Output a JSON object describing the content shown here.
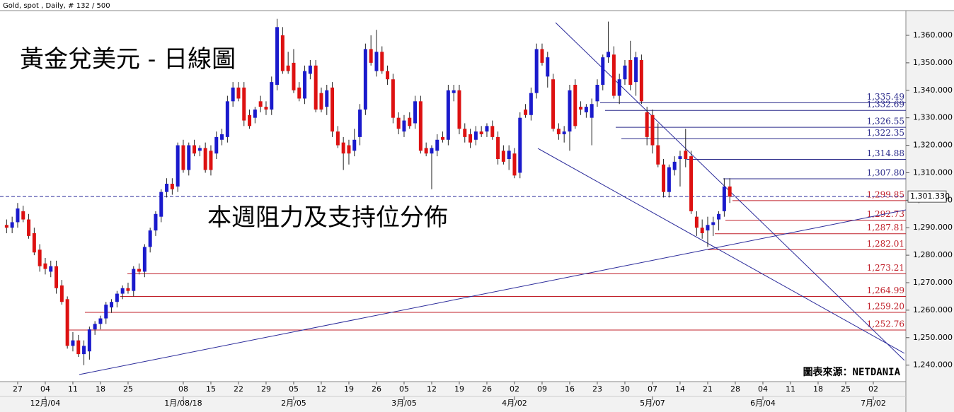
{
  "chart_data": {
    "type": "candlestick",
    "header": "Gold, spot , Daily, # 132 / 500",
    "title": "黃金兌美元 - 日線圖",
    "annotation": "本週阻力及支持位分佈",
    "source": "圖表來源：NETDANIA",
    "up_color": "#1a1acc",
    "down_color": "#dd1111",
    "xlim": [
      -3.2,
      160.9
    ],
    "ylim": [
      1234,
      1369
    ],
    "yticks": [
      {
        "value": 1240,
        "label": "1,240.000"
      },
      {
        "value": 1250,
        "label": "1,250.000"
      },
      {
        "value": 1260,
        "label": "1,260.000"
      },
      {
        "value": 1270,
        "label": "1,270.000"
      },
      {
        "value": 1280,
        "label": "1,280.000"
      },
      {
        "value": 1290,
        "label": "1,290.000"
      },
      {
        "value": 1300,
        "label": "1,300.000"
      },
      {
        "value": 1310,
        "label": "1,310.000"
      },
      {
        "value": 1320,
        "label": "1,320.000"
      },
      {
        "value": 1330,
        "label": "1,330.000"
      },
      {
        "value": 1340,
        "label": "1,340.000"
      },
      {
        "value": 1350,
        "label": "1,350.000"
      },
      {
        "value": 1360,
        "label": "1,360.000"
      }
    ],
    "xticks": [
      {
        "value": 0,
        "label": "27"
      },
      {
        "value": 5,
        "label": "04"
      },
      {
        "value": 10,
        "label": "11"
      },
      {
        "value": 15,
        "label": "18"
      },
      {
        "value": 20,
        "label": "25"
      },
      {
        "value": 30,
        "label": "08"
      },
      {
        "value": 35,
        "label": "15"
      },
      {
        "value": 40,
        "label": "22"
      },
      {
        "value": 45,
        "label": "29"
      },
      {
        "value": 50,
        "label": "05"
      },
      {
        "value": 55,
        "label": "12"
      },
      {
        "value": 60,
        "label": "19"
      },
      {
        "value": 65,
        "label": "26"
      },
      {
        "value": 70,
        "label": "05"
      },
      {
        "value": 75,
        "label": "12"
      },
      {
        "value": 80,
        "label": "19"
      },
      {
        "value": 85,
        "label": "26"
      },
      {
        "value": 90,
        "label": "02"
      },
      {
        "value": 95,
        "label": "09"
      },
      {
        "value": 100,
        "label": "16"
      },
      {
        "value": 105,
        "label": "23"
      },
      {
        "value": 110,
        "label": "30"
      },
      {
        "value": 115,
        "label": "07"
      },
      {
        "value": 120,
        "label": "14"
      },
      {
        "value": 125,
        "label": "21"
      },
      {
        "value": 130,
        "label": "28"
      },
      {
        "value": 135,
        "label": "04"
      },
      {
        "value": 140,
        "label": "11"
      },
      {
        "value": 145,
        "label": "18"
      },
      {
        "value": 150,
        "label": "25"
      },
      {
        "value": 155,
        "label": "02"
      }
    ],
    "month_ticks": [
      {
        "value": 5,
        "label": "12月/04"
      },
      {
        "value": 30,
        "label": "1月/08/18"
      },
      {
        "value": 50,
        "label": "2月/05"
      },
      {
        "value": 70,
        "label": "3月/05"
      },
      {
        "value": 90,
        "label": "4月/02"
      },
      {
        "value": 115,
        "label": "5月/07"
      },
      {
        "value": 135,
        "label": "6月/04"
      },
      {
        "value": 155,
        "label": "7月/02"
      }
    ],
    "last": {
      "value": 1301.33,
      "label": "1,301.330"
    },
    "levels": [
      {
        "value": 1335.49,
        "label": "1,335.49",
        "color": "#2a2a8a"
      },
      {
        "value": 1332.69,
        "label": "1,332.69",
        "color": "#2a2a8a"
      },
      {
        "value": 1326.55,
        "label": "1,326.55",
        "color": "#2a2a8a"
      },
      {
        "value": 1322.35,
        "label": "1,322.35",
        "color": "#2a2a8a"
      },
      {
        "value": 1314.88,
        "label": "1,314.88",
        "color": "#2a2a8a"
      },
      {
        "value": 1307.8,
        "label": "1,307.80",
        "color": "#2a2a8a"
      },
      {
        "value": 1299.85,
        "label": "1,299.85",
        "color": "#c0202a"
      },
      {
        "value": 1292.73,
        "label": "1,292.73",
        "color": "#c0202a"
      },
      {
        "value": 1287.81,
        "label": "1,287.81",
        "color": "#c0202a"
      },
      {
        "value": 1282.01,
        "label": "1,282.01",
        "color": "#c0202a"
      },
      {
        "value": 1273.21,
        "label": "1,273.21",
        "color": "#c0202a"
      },
      {
        "value": 1264.99,
        "label": "1,264.99",
        "color": "#c0202a"
      },
      {
        "value": 1259.2,
        "label": "1,259.20",
        "color": "#c0202a"
      },
      {
        "value": 1252.76,
        "label": "1,252.76",
        "color": "#c0202a"
      }
    ],
    "x": [
      -2,
      -1,
      0,
      1,
      2,
      3,
      4,
      5,
      6,
      7,
      8,
      9,
      10,
      11,
      12,
      13,
      14,
      15,
      16,
      17,
      18,
      19,
      20,
      21,
      22,
      23,
      24,
      25,
      26,
      27,
      28,
      29,
      30,
      31,
      32,
      33,
      34,
      35,
      36,
      37,
      38,
      39,
      40,
      41,
      42,
      43,
      44,
      45,
      46,
      47,
      48,
      49,
      50,
      51,
      52,
      53,
      54,
      55,
      56,
      57,
      58,
      59,
      60,
      61,
      62,
      63,
      64,
      65,
      66,
      67,
      68,
      69,
      70,
      71,
      72,
      73,
      74,
      75,
      76,
      77,
      78,
      79,
      80,
      81,
      82,
      83,
      84,
      85,
      86,
      87,
      88,
      89,
      90,
      91,
      92,
      93,
      94,
      95,
      96,
      97,
      98,
      99,
      100,
      101,
      102,
      103,
      104,
      105,
      106,
      107,
      108,
      109,
      110,
      111,
      112,
      113,
      114,
      115,
      116,
      117,
      118,
      119,
      120,
      121,
      122,
      123,
      124,
      125,
      126,
      127,
      128,
      129
    ],
    "open": [
      1291,
      1290,
      1292,
      1296,
      1293,
      1288,
      1282,
      1277,
      1274,
      1276,
      1269,
      1264,
      1247,
      1249,
      1244,
      1245,
      1253,
      1255,
      1257,
      1261,
      1263,
      1266,
      1268,
      1267,
      1275,
      1274,
      1283,
      1289,
      1294,
      1303,
      1306,
      1305,
      1320,
      1311,
      1320,
      1318,
      1319,
      1318,
      1317,
      1322,
      1323,
      1336,
      1341,
      1341,
      1331,
      1330,
      1336,
      1334,
      1333,
      1342,
      1360,
      1349,
      1350,
      1341,
      1337,
      1346,
      1349,
      1339,
      1334,
      1341,
      1325,
      1321,
      1320,
      1318,
      1323,
      1333,
      1355,
      1347,
      1354,
      1347,
      1344,
      1330,
      1325,
      1330,
      1328,
      1336,
      1319,
      1317,
      1318,
      1323,
      1322,
      1339,
      1340,
      1326,
      1324,
      1322,
      1325,
      1325,
      1327,
      1323,
      1318,
      1315,
      1317,
      1310,
      1333,
      1331,
      1339,
      1355,
      1345,
      1344,
      1326,
      1324,
      1325,
      1342,
      1334,
      1332,
      1330,
      1336,
      1342,
      1352,
      1353,
      1338,
      1344,
      1351,
      1343,
      1351,
      1332,
      1331,
      1320,
      1313,
      1303,
      1311,
      1315,
      1318,
      1316,
      1294,
      1290,
      1289,
      1291,
      1293,
      1296,
      1305
    ],
    "high": [
      1293,
      1294,
      1299,
      1298,
      1295,
      1290,
      1284,
      1279,
      1278,
      1278,
      1271,
      1265,
      1252,
      1251,
      1249,
      1254,
      1256,
      1258,
      1263,
      1264,
      1267,
      1269,
      1270,
      1276,
      1277,
      1284,
      1290,
      1296,
      1304,
      1308,
      1308,
      1321,
      1322,
      1321,
      1322,
      1320,
      1321,
      1320,
      1325,
      1326,
      1338,
      1343,
      1343,
      1343,
      1333,
      1334,
      1338,
      1336,
      1345,
      1366,
      1363,
      1354,
      1355,
      1343,
      1349,
      1351,
      1351,
      1341,
      1342,
      1343,
      1327,
      1323,
      1322,
      1326,
      1335,
      1357,
      1360,
      1362,
      1356,
      1349,
      1346,
      1332,
      1331,
      1332,
      1338,
      1338,
      1321,
      1320,
      1324,
      1325,
      1342,
      1342,
      1342,
      1328,
      1326,
      1327,
      1327,
      1328,
      1329,
      1325,
      1320,
      1320,
      1319,
      1332,
      1335,
      1341,
      1357,
      1357,
      1354,
      1346,
      1328,
      1327,
      1342,
      1344,
      1336,
      1335,
      1337,
      1344,
      1353,
      1365,
      1356,
      1346,
      1351,
      1358,
      1354,
      1353,
      1334,
      1333,
      1328,
      1315,
      1313,
      1316,
      1318,
      1326,
      1318,
      1296,
      1293,
      1294,
      1294,
      1296,
      1308,
      1308
    ],
    "low": [
      1288,
      1288,
      1290,
      1292,
      1286,
      1280,
      1274,
      1273,
      1272,
      1266,
      1262,
      1246,
      1245,
      1243,
      1240,
      1242,
      1251,
      1253,
      1255,
      1259,
      1261,
      1264,
      1266,
      1265,
      1273,
      1272,
      1281,
      1287,
      1292,
      1301,
      1302,
      1303,
      1310,
      1309,
      1316,
      1316,
      1310,
      1309,
      1315,
      1320,
      1321,
      1334,
      1336,
      1327,
      1326,
      1328,
      1332,
      1331,
      1331,
      1340,
      1346,
      1346,
      1339,
      1336,
      1335,
      1344,
      1332,
      1332,
      1331,
      1323,
      1319,
      1311,
      1313,
      1316,
      1320,
      1331,
      1349,
      1345,
      1346,
      1342,
      1328,
      1324,
      1323,
      1326,
      1326,
      1317,
      1316,
      1304,
      1316,
      1321,
      1320,
      1336,
      1324,
      1321,
      1319,
      1320,
      1323,
      1323,
      1322,
      1313,
      1313,
      1311,
      1308,
      1308,
      1330,
      1329,
      1337,
      1349,
      1341,
      1325,
      1322,
      1321,
      1318,
      1326,
      1331,
      1330,
      1320,
      1334,
      1340,
      1350,
      1337,
      1335,
      1342,
      1340,
      1338,
      1335,
      1320,
      1317,
      1312,
      1301,
      1301,
      1309,
      1305,
      1312,
      1295,
      1287,
      1286,
      1283,
      1287,
      1289,
      1294,
      1299
    ],
    "close": [
      1290,
      1292,
      1297,
      1293,
      1287,
      1281,
      1276,
      1275,
      1276,
      1268,
      1263,
      1247,
      1249,
      1244,
      1247,
      1253,
      1255,
      1257,
      1262,
      1263,
      1266,
      1268,
      1267,
      1275,
      1274,
      1283,
      1289,
      1295,
      1303,
      1306,
      1304,
      1320,
      1311,
      1320,
      1317,
      1319,
      1311,
      1311,
      1323,
      1324,
      1336,
      1341,
      1337,
      1329,
      1327,
      1333,
      1334,
      1333,
      1343,
      1363,
      1347,
      1347,
      1340,
      1337,
      1347,
      1349,
      1333,
      1333,
      1340,
      1325,
      1320,
      1317,
      1317,
      1322,
      1333,
      1355,
      1350,
      1354,
      1347,
      1344,
      1330,
      1326,
      1329,
      1327,
      1336,
      1318,
      1317,
      1319,
      1322,
      1322,
      1340,
      1340,
      1326,
      1323,
      1321,
      1325,
      1324,
      1327,
      1323,
      1315,
      1314,
      1318,
      1309,
      1330,
      1331,
      1339,
      1355,
      1350,
      1352,
      1326,
      1324,
      1325,
      1340,
      1327,
      1333,
      1334,
      1335,
      1342,
      1352,
      1354,
      1338,
      1344,
      1349,
      1342,
      1352,
      1336,
      1323,
      1320,
      1313,
      1303,
      1312,
      1314,
      1316,
      1315,
      1296,
      1290,
      1288,
      1291,
      1292,
      1295,
      1305,
      1301.33
    ]
  }
}
